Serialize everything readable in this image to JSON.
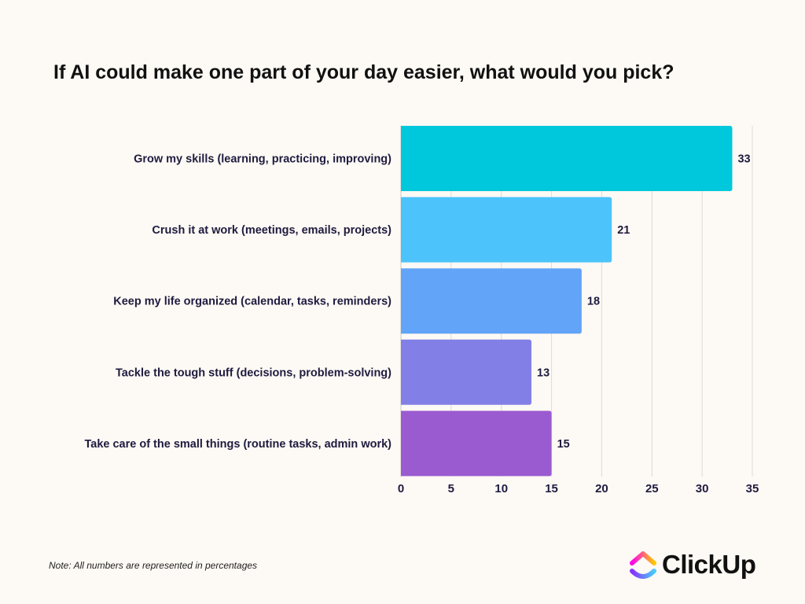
{
  "title": "If AI could make one part of your day easier, what would you pick?",
  "note": "Note: All numbers are represented in percentages",
  "brand": {
    "name": "ClickUp",
    "icon": "clickup-logo-icon"
  },
  "chart_data": {
    "type": "bar",
    "orientation": "horizontal",
    "title": "If AI could make one part of your day easier, what would you pick?",
    "categories": [
      "Grow my skills (learning, practicing, improving)",
      "Crush it at work (meetings, emails, projects)",
      "Keep my life organized (calendar, tasks, reminders)",
      "Tackle the tough stuff (decisions, problem-solving)",
      "Take care of the small things (routine tasks, admin work)"
    ],
    "values": [
      33,
      21,
      18,
      13,
      15
    ],
    "colors": [
      "#00c8dc",
      "#4cc3fb",
      "#62a4f7",
      "#8280e6",
      "#9a5bd0"
    ],
    "xlim": [
      0,
      35
    ],
    "xticks": [
      0,
      5,
      10,
      15,
      20,
      25,
      30,
      35
    ],
    "grid": true,
    "legend": "none"
  }
}
